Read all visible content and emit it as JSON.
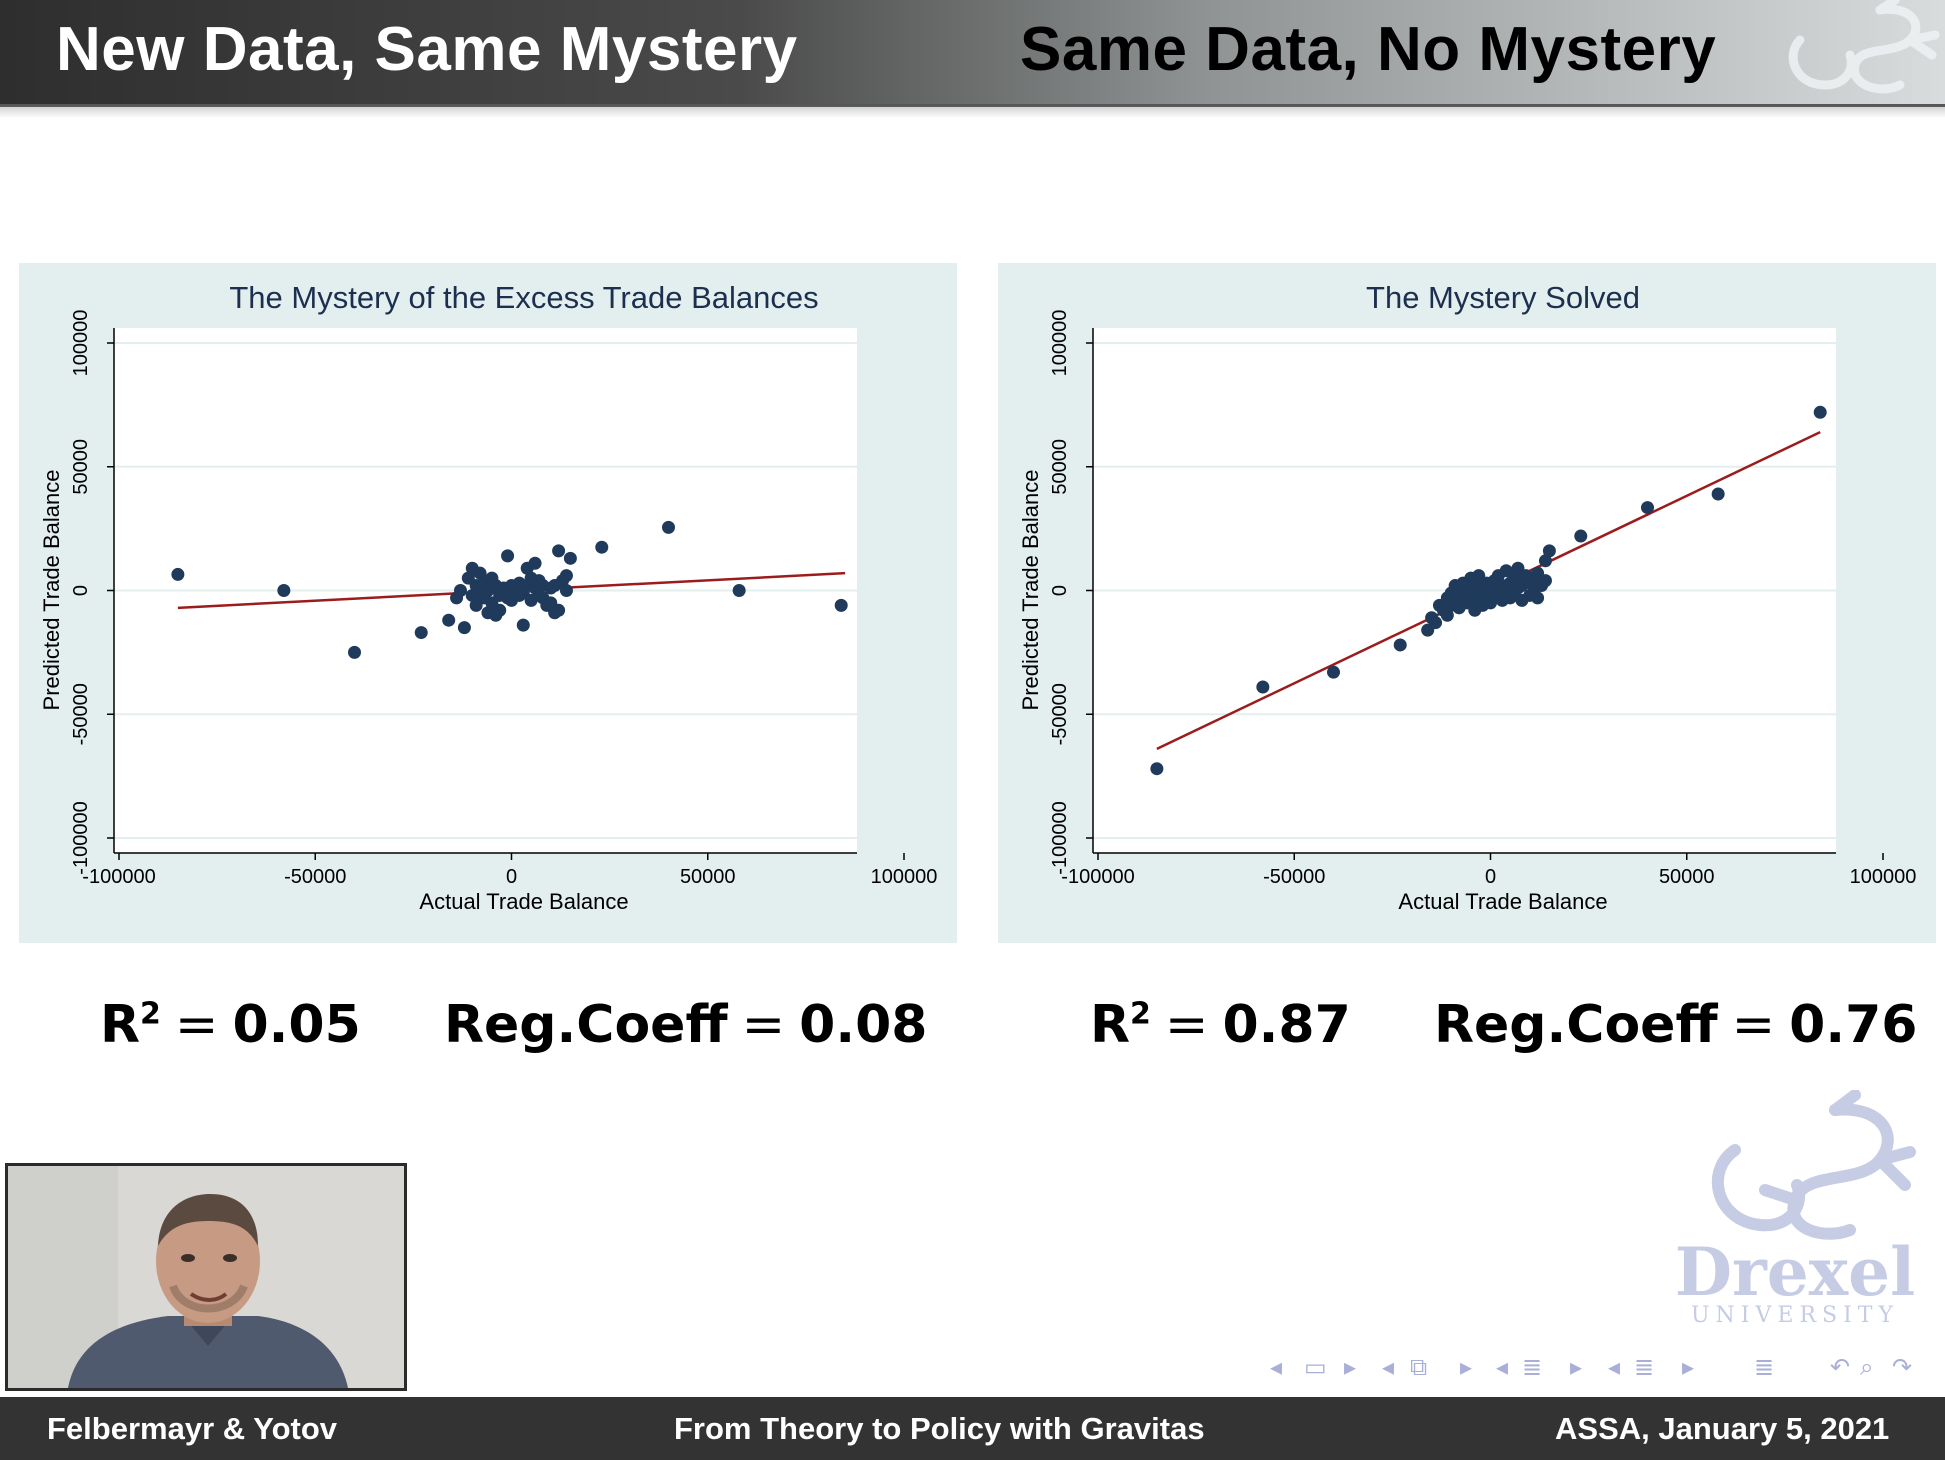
{
  "header": {
    "title_left": "New Data, Same Mystery",
    "title_right": "Same Data, No Mystery"
  },
  "stats": {
    "left": {
      "r2_label": "R",
      "r2_sup": "2",
      "r2_value": "0.05",
      "coef_label": "Reg.Coeff",
      "coef_value": "0.08"
    },
    "right": {
      "r2_label": "R",
      "r2_sup": "2",
      "r2_value": "0.87",
      "coef_label": "Reg.Coeff",
      "coef_value": "0.76"
    }
  },
  "logo": {
    "name": "Drexel",
    "sub": "UNIVERSITY"
  },
  "nav": {
    "icons": [
      "arrow-left",
      "frame",
      "arrow-right",
      "arrow-left",
      "subsection",
      "arrow-right",
      "arrow-left",
      "section",
      "arrow-right",
      "arrow-left",
      "document",
      "arrow-right",
      "align",
      "undo",
      "search",
      "redo"
    ]
  },
  "footer": {
    "left": "Felbermayr & Yotov",
    "center": "From Theory to Policy with Gravitas",
    "right": "ASSA, January 5, 2021"
  },
  "colors": {
    "points": "#1f3a5a",
    "fit_line": "#9b1c1c",
    "panel_bg": "#e3eeee",
    "accent_logo": "#b8c0dd"
  },
  "chart_data": [
    {
      "type": "scatter",
      "title": "The Mystery of the Excess Trade Balances",
      "xlabel": "Actual Trade Balance",
      "ylabel": "Predicted Trade Balance",
      "xlim": [
        -100000,
        100000
      ],
      "ylim": [
        -100000,
        100000
      ],
      "xticks": [
        "-100000",
        "-50000",
        "0",
        "50000",
        "100000"
      ],
      "yticks": [
        "-100000",
        "-50000",
        "0",
        "50000",
        "100000"
      ],
      "grid": true,
      "fit_line": [
        [
          -85000,
          -7000
        ],
        [
          85000,
          7000
        ]
      ],
      "points": [
        [
          -85000,
          6500
        ],
        [
          -58000,
          0
        ],
        [
          -40000,
          -25000
        ],
        [
          -23000,
          -17000
        ],
        [
          -16000,
          -12000
        ],
        [
          -14000,
          -3000
        ],
        [
          -13000,
          0
        ],
        [
          -12000,
          -15000
        ],
        [
          -11000,
          5000
        ],
        [
          -10000,
          -2000
        ],
        [
          -10000,
          9000
        ],
        [
          -9000,
          2000
        ],
        [
          -9000,
          -6000
        ],
        [
          -8000,
          -1000
        ],
        [
          -8000,
          7000
        ],
        [
          -7000,
          3000
        ],
        [
          -7000,
          -3000
        ],
        [
          -6000,
          0
        ],
        [
          -6000,
          -9000
        ],
        [
          -5000,
          5000
        ],
        [
          -5000,
          -5000
        ],
        [
          -4000,
          -10000
        ],
        [
          -4000,
          2000
        ],
        [
          -3000,
          -2000
        ],
        [
          -3000,
          -8000
        ],
        [
          -2000,
          1000
        ],
        [
          -1000,
          14000
        ],
        [
          -1000,
          -3000
        ],
        [
          0,
          2000
        ],
        [
          0,
          -4000
        ],
        [
          1000,
          0
        ],
        [
          2000,
          -2000
        ],
        [
          2000,
          3000
        ],
        [
          3000,
          -14000
        ],
        [
          3000,
          -1000
        ],
        [
          4000,
          9000
        ],
        [
          4000,
          2000
        ],
        [
          5000,
          -4000
        ],
        [
          5000,
          5000
        ],
        [
          6000,
          11000
        ],
        [
          6000,
          1000
        ],
        [
          7000,
          -2000
        ],
        [
          7000,
          4000
        ],
        [
          8000,
          2000
        ],
        [
          8000,
          -3000
        ],
        [
          9000,
          -6000
        ],
        [
          10000,
          -5000
        ],
        [
          10000,
          1000
        ],
        [
          11000,
          -9000
        ],
        [
          11000,
          2000
        ],
        [
          12000,
          -8000
        ],
        [
          12000,
          16000
        ],
        [
          13000,
          4000
        ],
        [
          14000,
          0
        ],
        [
          14000,
          6000
        ],
        [
          15000,
          13000
        ],
        [
          23000,
          17500
        ],
        [
          40000,
          25500
        ],
        [
          58000,
          0
        ],
        [
          84000,
          -6000
        ]
      ]
    },
    {
      "type": "scatter",
      "title": "The Mystery Solved",
      "xlabel": "Actual Trade Balance",
      "ylabel": "Predicted Trade Balance",
      "xlim": [
        -100000,
        100000
      ],
      "ylim": [
        -100000,
        100000
      ],
      "xticks": [
        "-100000",
        "-50000",
        "0",
        "50000",
        "100000"
      ],
      "yticks": [
        "-100000",
        "-50000",
        "0",
        "50000",
        "100000"
      ],
      "grid": true,
      "fit_line": [
        [
          -85000,
          -64000
        ],
        [
          84000,
          64000
        ]
      ],
      "points": [
        [
          -85000,
          -72000
        ],
        [
          -58000,
          -39000
        ],
        [
          -40000,
          -33000
        ],
        [
          -23000,
          -22000
        ],
        [
          -16000,
          -16000
        ],
        [
          -15000,
          -11000
        ],
        [
          -14000,
          -13000
        ],
        [
          -13000,
          -6000
        ],
        [
          -12000,
          -8000
        ],
        [
          -11000,
          -3000
        ],
        [
          -11000,
          -10000
        ],
        [
          -10000,
          -1000
        ],
        [
          -10000,
          -6000
        ],
        [
          -9000,
          2000
        ],
        [
          -9000,
          -4000
        ],
        [
          -8000,
          0
        ],
        [
          -8000,
          -7000
        ],
        [
          -7000,
          3000
        ],
        [
          -7000,
          -3000
        ],
        [
          -6000,
          1000
        ],
        [
          -6000,
          -5000
        ],
        [
          -5000,
          5000
        ],
        [
          -5000,
          -2000
        ],
        [
          -4000,
          -8000
        ],
        [
          -4000,
          2000
        ],
        [
          -3000,
          6000
        ],
        [
          -3000,
          -4000
        ],
        [
          -2000,
          0
        ],
        [
          -2000,
          -6000
        ],
        [
          -1000,
          3000
        ],
        [
          -1000,
          -2000
        ],
        [
          0,
          1000
        ],
        [
          0,
          -5000
        ],
        [
          1000,
          4000
        ],
        [
          1000,
          -2000
        ],
        [
          2000,
          0
        ],
        [
          2000,
          6000
        ],
        [
          3000,
          -4000
        ],
        [
          3000,
          2000
        ],
        [
          4000,
          8000
        ],
        [
          4000,
          -1000
        ],
        [
          5000,
          3000
        ],
        [
          5000,
          -3000
        ],
        [
          6000,
          5000
        ],
        [
          6000,
          -1000
        ],
        [
          7000,
          9000
        ],
        [
          7000,
          1000
        ],
        [
          8000,
          2000
        ],
        [
          8000,
          -4000
        ],
        [
          9000,
          6000
        ],
        [
          10000,
          3000
        ],
        [
          10000,
          -2000
        ],
        [
          11000,
          5000
        ],
        [
          11000,
          -1000
        ],
        [
          12000,
          -3000
        ],
        [
          12000,
          7000
        ],
        [
          13000,
          2000
        ],
        [
          14000,
          12000
        ],
        [
          14000,
          4000
        ],
        [
          15000,
          16000
        ],
        [
          23000,
          22000
        ],
        [
          40000,
          33500
        ],
        [
          58000,
          39000
        ],
        [
          84000,
          72000
        ]
      ]
    }
  ]
}
